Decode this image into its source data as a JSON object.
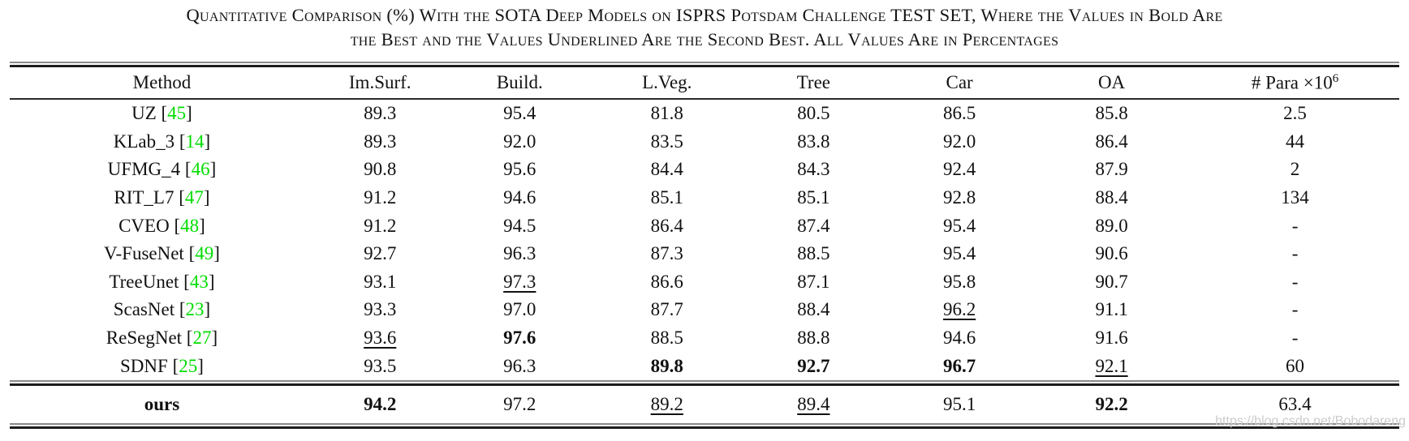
{
  "caption": {
    "line1": "Quantitative Comparison (%) With the SOTA Deep Models on ISPRS Potsdam Challenge TEST SET, Where the Values in Bold Are",
    "line2": "the Best and the Values Underlined Are the Second Best. All Values Are in Percentages"
  },
  "table": {
    "columns": [
      {
        "label": "Method"
      },
      {
        "label": "Im.Surf."
      },
      {
        "label": "Build."
      },
      {
        "label": "L.Veg."
      },
      {
        "label": "Tree"
      },
      {
        "label": "Car"
      },
      {
        "label": "OA"
      },
      {
        "label": "# Para ×10",
        "sup": "6"
      }
    ],
    "rows": [
      {
        "method": "UZ",
        "ref": "45",
        "values": [
          "89.3",
          "95.4",
          "81.8",
          "80.5",
          "86.5",
          "85.8",
          "2.5"
        ],
        "bold": [],
        "underline": []
      },
      {
        "method": "KLab_3",
        "ref": "14",
        "values": [
          "89.3",
          "92.0",
          "83.5",
          "83.8",
          "92.0",
          "86.4",
          "44"
        ],
        "bold": [],
        "underline": []
      },
      {
        "method": "UFMG_4",
        "ref": "46",
        "values": [
          "90.8",
          "95.6",
          "84.4",
          "84.3",
          "92.4",
          "87.9",
          "2"
        ],
        "bold": [],
        "underline": []
      },
      {
        "method": "RIT_L7",
        "ref": "47",
        "values": [
          "91.2",
          "94.6",
          "85.1",
          "85.1",
          "92.8",
          "88.4",
          "134"
        ],
        "bold": [],
        "underline": []
      },
      {
        "method": "CVEO",
        "ref": "48",
        "values": [
          "91.2",
          "94.5",
          "86.4",
          "87.4",
          "95.4",
          "89.0",
          "-"
        ],
        "bold": [],
        "underline": []
      },
      {
        "method": "V-FuseNet",
        "ref": "49",
        "values": [
          "92.7",
          "96.3",
          "87.3",
          "88.5",
          "95.4",
          "90.6",
          "-"
        ],
        "bold": [],
        "underline": []
      },
      {
        "method": "TreeUnet",
        "ref": "43",
        "values": [
          "93.1",
          "97.3",
          "86.6",
          "87.1",
          "95.8",
          "90.7",
          "-"
        ],
        "bold": [],
        "underline": [
          1
        ]
      },
      {
        "method": "ScasNet",
        "ref": "23",
        "values": [
          "93.3",
          "97.0",
          "87.7",
          "88.4",
          "96.2",
          "91.1",
          "-"
        ],
        "bold": [],
        "underline": [
          4
        ]
      },
      {
        "method": "ReSegNet",
        "ref": "27",
        "values": [
          "93.6",
          "97.6",
          "88.5",
          "88.8",
          "94.6",
          "91.6",
          "-"
        ],
        "bold": [
          1
        ],
        "underline": [
          0
        ]
      },
      {
        "method": "SDNF",
        "ref": "25",
        "values": [
          "93.5",
          "96.3",
          "89.8",
          "92.7",
          "96.7",
          "92.1",
          "60"
        ],
        "bold": [
          2,
          3,
          4
        ],
        "underline": [
          5
        ]
      }
    ],
    "ours": {
      "method": "ours",
      "ref": null,
      "method_bold": true,
      "values": [
        "94.2",
        "97.2",
        "89.2",
        "89.4",
        "95.1",
        "92.2",
        "63.4"
      ],
      "bold": [
        0,
        5
      ],
      "underline": [
        2,
        3
      ]
    }
  },
  "watermark": "https://blog.csdn.net/Bobodareng",
  "colors": {
    "citation_green": "#00DD00",
    "watermark_gray": "#CCCCCC"
  }
}
